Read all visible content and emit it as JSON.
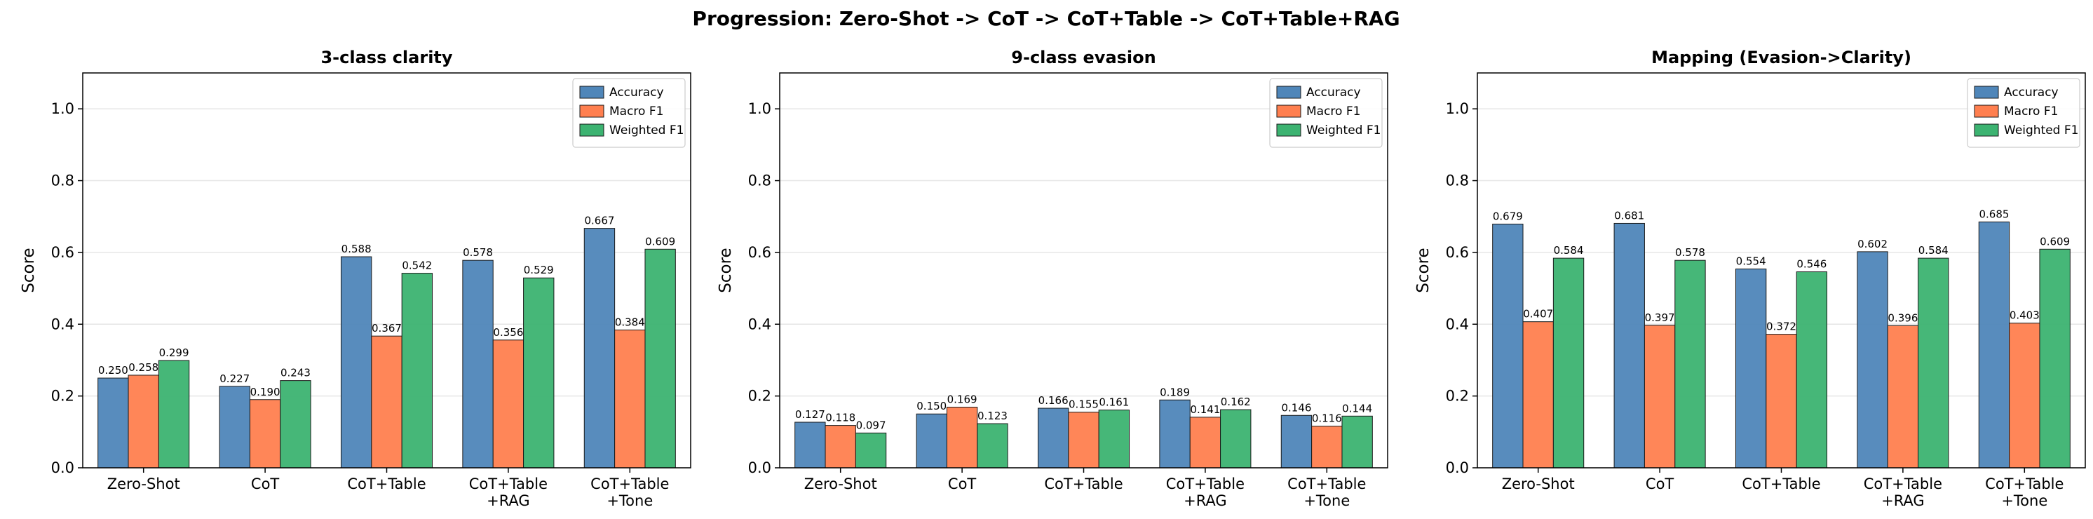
{
  "figure": {
    "suptitle": "Progression: Zero-Shot -> CoT -> CoT+Table -> CoT+Table+RAG"
  },
  "colors": {
    "Accuracy": "#4f86b9",
    "Macro F1": "#ff7f4f",
    "Weighted F1": "#3cb371"
  },
  "chart_data": [
    {
      "type": "bar",
      "title": "3-class clarity",
      "xlabel": "",
      "ylabel": "Score",
      "ylim": [
        0,
        1.1
      ],
      "yticks": [
        "0.0",
        "0.2",
        "0.4",
        "0.6",
        "0.8",
        "1.0"
      ],
      "grid": "y",
      "legend": "top-right",
      "categories": [
        [
          "Zero-Shot"
        ],
        [
          "CoT"
        ],
        [
          "CoT+Table"
        ],
        [
          "CoT+Table",
          "+RAG"
        ],
        [
          "CoT+Table",
          "+Tone"
        ]
      ],
      "series": [
        {
          "name": "Accuracy",
          "values": [
            0.25,
            0.227,
            0.588,
            0.578,
            0.667
          ],
          "labels": [
            "0.250",
            "0.227",
            "0.588",
            "0.578",
            "0.667"
          ]
        },
        {
          "name": "Macro F1",
          "values": [
            0.258,
            0.19,
            0.367,
            0.356,
            0.384
          ],
          "labels": [
            "0.258",
            "0.190",
            "0.367",
            "0.356",
            "0.384"
          ]
        },
        {
          "name": "Weighted F1",
          "values": [
            0.299,
            0.243,
            0.542,
            0.529,
            0.609
          ],
          "labels": [
            "0.299",
            "0.243",
            "0.542",
            "0.529",
            "0.609"
          ]
        }
      ]
    },
    {
      "type": "bar",
      "title": "9-class evasion",
      "xlabel": "",
      "ylabel": "Score",
      "ylim": [
        0,
        1.1
      ],
      "yticks": [
        "0.0",
        "0.2",
        "0.4",
        "0.6",
        "0.8",
        "1.0"
      ],
      "grid": "y",
      "legend": "top-right",
      "categories": [
        [
          "Zero-Shot"
        ],
        [
          "CoT"
        ],
        [
          "CoT+Table"
        ],
        [
          "CoT+Table",
          "+RAG"
        ],
        [
          "CoT+Table",
          "+Tone"
        ]
      ],
      "series": [
        {
          "name": "Accuracy",
          "values": [
            0.127,
            0.15,
            0.166,
            0.189,
            0.146
          ],
          "labels": [
            "0.127",
            "0.150",
            "0.166",
            "0.189",
            "0.146"
          ]
        },
        {
          "name": "Macro F1",
          "values": [
            0.118,
            0.169,
            0.155,
            0.141,
            0.116
          ],
          "labels": [
            "0.118",
            "0.169",
            "0.155",
            "0.141",
            "0.116"
          ]
        },
        {
          "name": "Weighted F1",
          "values": [
            0.097,
            0.123,
            0.161,
            0.162,
            0.144
          ],
          "labels": [
            "0.097",
            "0.123",
            "0.161",
            "0.162",
            "0.144"
          ]
        }
      ]
    },
    {
      "type": "bar",
      "title": "Mapping (Evasion->Clarity)",
      "xlabel": "",
      "ylabel": "Score",
      "ylim": [
        0,
        1.1
      ],
      "yticks": [
        "0.0",
        "0.2",
        "0.4",
        "0.6",
        "0.8",
        "1.0"
      ],
      "grid": "y",
      "legend": "top-right",
      "categories": [
        [
          "Zero-Shot"
        ],
        [
          "CoT"
        ],
        [
          "CoT+Table"
        ],
        [
          "CoT+Table",
          "+RAG"
        ],
        [
          "CoT+Table",
          "+Tone"
        ]
      ],
      "series": [
        {
          "name": "Accuracy",
          "values": [
            0.679,
            0.681,
            0.554,
            0.602,
            0.685
          ],
          "labels": [
            "0.679",
            "0.681",
            "0.554",
            "0.602",
            "0.685"
          ]
        },
        {
          "name": "Macro F1",
          "values": [
            0.407,
            0.397,
            0.372,
            0.396,
            0.403
          ],
          "labels": [
            "0.407",
            "0.397",
            "0.372",
            "0.396",
            "0.403"
          ]
        },
        {
          "name": "Weighted F1",
          "values": [
            0.584,
            0.578,
            0.546,
            0.584,
            0.609
          ],
          "labels": [
            "0.584",
            "0.578",
            "0.546",
            "0.584",
            "0.609"
          ]
        }
      ]
    }
  ]
}
